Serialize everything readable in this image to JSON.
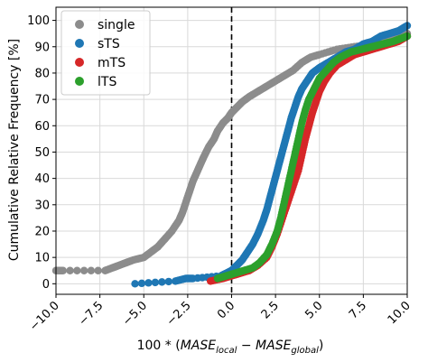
{
  "chart_data": {
    "type": "scatter",
    "ylabel": "Cumulative Relative Frequency [%]",
    "xlabel": {
      "prefix": "100 * (",
      "term1_base": "MASE",
      "term1_sub": "local",
      "operator": " − ",
      "term2_base": "MASE",
      "term2_sub": "global",
      "suffix": ")"
    },
    "xlim": [
      -10,
      10
    ],
    "ylim": [
      -4,
      105
    ],
    "xticks": [
      -10,
      -7.5,
      -5,
      -2.5,
      0,
      2.5,
      5,
      7.5,
      10
    ],
    "xtick_labels": [
      "−10.0",
      "−7.5",
      "−5.0",
      "−2.5",
      "0.0",
      "2.5",
      "5.0",
      "7.5",
      "10.0"
    ],
    "yticks": [
      0,
      10,
      20,
      30,
      40,
      50,
      60,
      70,
      80,
      90,
      100
    ],
    "ytick_labels": [
      "0",
      "10",
      "20",
      "30",
      "40",
      "50",
      "60",
      "70",
      "80",
      "90",
      "100"
    ],
    "grid": true,
    "legend_position": "top-left",
    "reference_line": {
      "x": 0,
      "style": "dashed",
      "color": "#000000"
    },
    "series": [
      {
        "name": "single",
        "color": "#8c8c8c",
        "x": [
          -10,
          -9.6,
          -7.2,
          -6.8,
          -6.4,
          -6.0,
          -5.6,
          -5.0,
          -4.6,
          -4.2,
          -3.8,
          -3.4,
          -3.0,
          -2.8,
          -2.6,
          -2.4,
          -2.2,
          -2.0,
          -1.8,
          -1.6,
          -1.3,
          -1.0,
          -0.8,
          -0.5,
          -0.2,
          0.0,
          0.3,
          0.6,
          1.0,
          1.5,
          2.0,
          2.5,
          3.0,
          3.5,
          4.0,
          4.5,
          5.0,
          6.0,
          7.0,
          8.0,
          9.0,
          10.0
        ],
        "y": [
          5,
          5,
          5,
          6,
          7,
          8,
          9,
          10,
          12,
          14,
          17,
          20,
          24,
          27,
          31,
          35,
          39,
          42,
          45,
          48,
          52,
          55,
          58,
          61,
          63,
          65,
          67,
          69,
          71,
          73,
          75,
          77,
          79,
          81,
          84,
          86,
          87,
          89,
          90,
          91,
          93,
          95
        ]
      },
      {
        "name": "sTS",
        "color": "#1f77b4",
        "x": [
          -5.5,
          -3.2,
          -2.6,
          -2.2,
          -0.6,
          -0.3,
          0.0,
          0.3,
          0.6,
          0.9,
          1.2,
          1.5,
          1.8,
          2.0,
          2.2,
          2.4,
          2.6,
          2.8,
          3.0,
          3.2,
          3.4,
          3.6,
          3.8,
          4.0,
          4.3,
          4.6,
          5.0,
          5.5,
          6.0,
          6.5,
          7.0,
          7.5,
          8.0,
          8.5,
          9.0,
          9.5,
          10.0
        ],
        "y": [
          0,
          1,
          2,
          2,
          3,
          4,
          5,
          7,
          9,
          12,
          15,
          19,
          24,
          28,
          33,
          38,
          43,
          48,
          53,
          58,
          63,
          67,
          71,
          74,
          77,
          80,
          82,
          84,
          86,
          88,
          89,
          91,
          92,
          94,
          95,
          96,
          98
        ]
      },
      {
        "name": "mTS",
        "color": "#d62728",
        "x": [
          -1.2,
          -0.5,
          0.0,
          0.5,
          1.0,
          1.5,
          2.0,
          2.3,
          2.6,
          2.9,
          3.2,
          3.5,
          3.8,
          4.0,
          4.2,
          4.4,
          4.6,
          4.8,
          5.0,
          5.3,
          5.6,
          6.0,
          6.5,
          7.0,
          7.5,
          8.0,
          8.5,
          9.0,
          9.5,
          10.0
        ],
        "y": [
          1,
          2,
          3,
          4,
          5,
          7,
          10,
          14,
          19,
          25,
          31,
          37,
          43,
          49,
          55,
          60,
          65,
          69,
          73,
          77,
          80,
          83,
          85,
          87,
          88,
          89,
          90,
          91,
          92,
          94
        ]
      },
      {
        "name": "lTS",
        "color": "#2ca02c",
        "x": [
          -0.8,
          -0.3,
          0.2,
          0.7,
          1.2,
          1.6,
          2.0,
          2.3,
          2.6,
          2.8,
          3.0,
          3.2,
          3.4,
          3.6,
          3.8,
          4.0,
          4.2,
          4.4,
          4.7,
          5.0,
          5.4,
          5.8,
          6.2,
          6.8,
          7.4,
          8.0,
          8.6,
          9.2,
          9.6,
          10.0
        ],
        "y": [
          2,
          3,
          4,
          5,
          6,
          8,
          11,
          15,
          20,
          25,
          31,
          37,
          43,
          49,
          55,
          61,
          66,
          70,
          74,
          78,
          81,
          84,
          86,
          88,
          89,
          90,
          91,
          92,
          93,
          94
        ]
      }
    ]
  }
}
